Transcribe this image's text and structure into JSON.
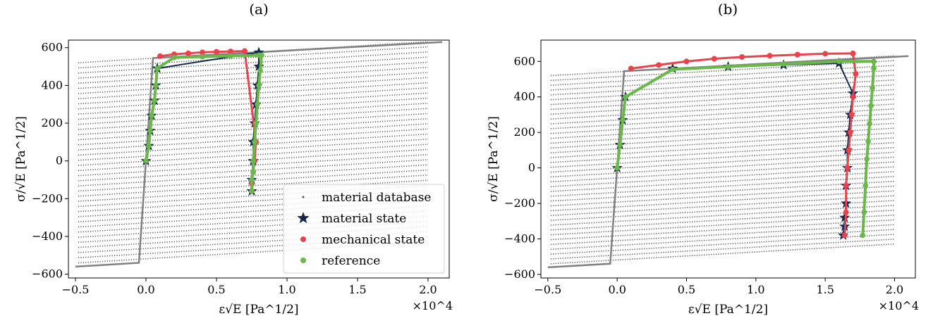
{
  "figure": {
    "legend": {
      "placement": "lower-right of panel (a)",
      "entries": [
        {
          "label": "material database",
          "marker": "dot",
          "color": "#555555"
        },
        {
          "label": "material state",
          "marker": "star",
          "color": "#14284b"
        },
        {
          "label": "mechanical state",
          "marker": "circle",
          "color": "#e8424d"
        },
        {
          "label": "reference",
          "marker": "circle",
          "color": "#6ab84a"
        }
      ]
    },
    "colors": {
      "database": "#555555",
      "boundary": "#808080",
      "material_state": "#14284b",
      "mechanical_state": "#e8424d",
      "reference": "#6ab84a"
    }
  },
  "chart_data": [
    {
      "type": "scatter",
      "panel_label": "(a)",
      "xlabel": "ε√E [Pa^1/2]",
      "ylabel": "σ/√E [Pa^1/2]",
      "x_offset_label": "×10^4",
      "xlim": [
        -0.55,
        2.15
      ],
      "ylim": [
        -620,
        640
      ],
      "xticks": [
        -0.5,
        0.0,
        0.5,
        1.0,
        1.5,
        2.0
      ],
      "xtick_labels": [
        "−0.5",
        "0.0",
        "0.5",
        "1.0",
        "1.5",
        "2.0"
      ],
      "yticks": [
        -600,
        -400,
        -200,
        0,
        200,
        400,
        600
      ],
      "ytick_labels": [
        "−600",
        "−400",
        "−200",
        "0",
        "200",
        "400",
        "600"
      ],
      "grid": false,
      "material_database": {
        "x_range": [
          -0.48,
          2.0
        ],
        "y_at_left": [
          -540,
          520
        ],
        "slope": 45,
        "num_lines": 40
      },
      "boundary_curve": {
        "x": [
          -0.5,
          -0.05,
          0.05,
          2.1
        ],
        "y": [
          -560,
          -540,
          545,
          630
        ]
      },
      "series": [
        {
          "name": "material state",
          "x": [
            0.0,
            0.02,
            0.03,
            0.04,
            0.06,
            0.07,
            0.08,
            0.8,
            0.8,
            0.79,
            0.78,
            0.77,
            0.76,
            0.76,
            0.75,
            0.75
          ],
          "y": [
            0,
            80,
            160,
            240,
            320,
            400,
            490,
            575,
            500,
            400,
            300,
            200,
            100,
            0,
            -100,
            -160
          ]
        },
        {
          "name": "mechanical state",
          "x": [
            0.1,
            0.2,
            0.3,
            0.4,
            0.5,
            0.6,
            0.7,
            0.78,
            0.77,
            0.76,
            0.75,
            0.75
          ],
          "y": [
            555,
            565,
            570,
            575,
            578,
            580,
            582,
            100,
            0,
            -60,
            -120,
            -160
          ]
        },
        {
          "name": "reference",
          "x": [
            0.0,
            0.02,
            0.03,
            0.04,
            0.06,
            0.07,
            0.08,
            0.2,
            0.4,
            0.6,
            0.8,
            0.82,
            0.81,
            0.8,
            0.79,
            0.78,
            0.77,
            0.76,
            0.76,
            0.75,
            0.75
          ],
          "y": [
            0,
            80,
            160,
            240,
            320,
            400,
            490,
            548,
            552,
            556,
            560,
            560,
            480,
            400,
            300,
            200,
            100,
            0,
            -60,
            -100,
            -160
          ]
        }
      ]
    },
    {
      "type": "scatter",
      "panel_label": "(b)",
      "xlabel": "ε√E [Pa^1/2]",
      "ylabel": "σ/√E [Pa^1/2]",
      "x_offset_label": "×10^4",
      "xlim": [
        -0.55,
        2.15
      ],
      "ylim": [
        -620,
        720
      ],
      "xticks": [
        -0.5,
        0.0,
        0.5,
        1.0,
        1.5,
        2.0
      ],
      "xtick_labels": [
        "−0.5",
        "0.0",
        "0.5",
        "1.0",
        "1.5",
        "2.0"
      ],
      "yticks": [
        -600,
        -400,
        -200,
        0,
        200,
        400,
        600
      ],
      "ytick_labels": [
        "−600",
        "−400",
        "−200",
        "0",
        "200",
        "400",
        "600"
      ],
      "grid": false,
      "material_database": {
        "x_range": [
          -0.48,
          2.0
        ],
        "y_at_left": [
          -540,
          520
        ],
        "slope": 45,
        "num_lines": 40
      },
      "boundary_curve": {
        "x": [
          -0.5,
          -0.05,
          0.05,
          2.1
        ],
        "y": [
          -560,
          -540,
          545,
          630
        ]
      },
      "series": [
        {
          "name": "material state",
          "x": [
            0.0,
            0.02,
            0.04,
            0.06,
            0.4,
            0.8,
            1.2,
            1.6,
            1.7,
            1.68,
            1.67,
            1.66,
            1.66,
            1.65,
            1.65,
            1.64,
            1.64,
            1.63
          ],
          "y": [
            0,
            130,
            270,
            400,
            560,
            570,
            580,
            590,
            420,
            300,
            200,
            100,
            0,
            -100,
            -200,
            -280,
            -330,
            -380
          ]
        },
        {
          "name": "mechanical state",
          "x": [
            0.1,
            0.3,
            0.5,
            0.7,
            0.9,
            1.1,
            1.3,
            1.5,
            1.7,
            1.72,
            1.7,
            1.69,
            1.68,
            1.67,
            1.66,
            1.65,
            1.65,
            1.64
          ],
          "y": [
            560,
            580,
            600,
            615,
            625,
            632,
            638,
            643,
            645,
            530,
            400,
            300,
            200,
            100,
            0,
            -100,
            -250,
            -380
          ]
        },
        {
          "name": "reference",
          "x": [
            0.0,
            0.02,
            0.04,
            0.06,
            0.4,
            0.8,
            1.2,
            1.6,
            1.85,
            1.85,
            1.84,
            1.83,
            1.82,
            1.81,
            1.8,
            1.79,
            1.78,
            1.77
          ],
          "y": [
            0,
            130,
            270,
            400,
            555,
            570,
            585,
            600,
            600,
            560,
            450,
            350,
            250,
            150,
            50,
            -100,
            -250,
            -380
          ]
        }
      ]
    }
  ]
}
